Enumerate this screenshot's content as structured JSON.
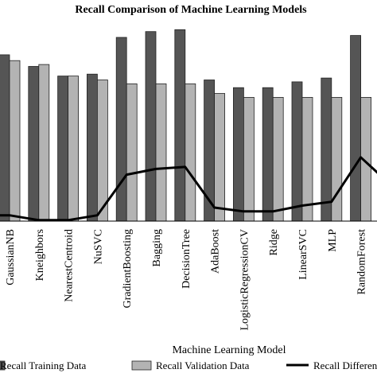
{
  "chart_data": {
    "type": "bar",
    "title": "Recall Comparison of Machine Learning Models",
    "xlabel": "Machine Learning Model",
    "ylabel": "",
    "ylim": [
      0,
      1.02
    ],
    "legend_position": "bottom",
    "grid": false,
    "categories": [
      "GaussianNB",
      "Kneighbors",
      "NearestCentroid",
      "NuSVC",
      "GradientBoosting",
      "Bagging",
      "DecisionTree",
      "AdaBoost",
      "LogisticRegressionCV",
      "Ridge",
      "LinearSVC",
      "MLP",
      "RandomForest"
    ],
    "series": [
      {
        "name": "Recall Training Data",
        "kind": "bar",
        "color": "#555555",
        "values": [
          0.86,
          0.8,
          0.75,
          0.76,
          0.95,
          0.98,
          0.99,
          0.73,
          0.69,
          0.69,
          0.72,
          0.74,
          0.96
        ]
      },
      {
        "name": "Recall Validation Data",
        "kind": "bar",
        "color": "#b3b3b3",
        "values": [
          0.83,
          0.81,
          0.75,
          0.73,
          0.71,
          0.71,
          0.71,
          0.66,
          0.64,
          0.64,
          0.64,
          0.64,
          0.64
        ]
      },
      {
        "name": "Recall Difference",
        "kind": "line",
        "color": "#000000",
        "values": [
          0.03,
          0.005,
          0.005,
          0.03,
          0.24,
          0.27,
          0.28,
          0.07,
          0.05,
          0.05,
          0.08,
          0.1,
          0.33
        ]
      }
    ]
  }
}
